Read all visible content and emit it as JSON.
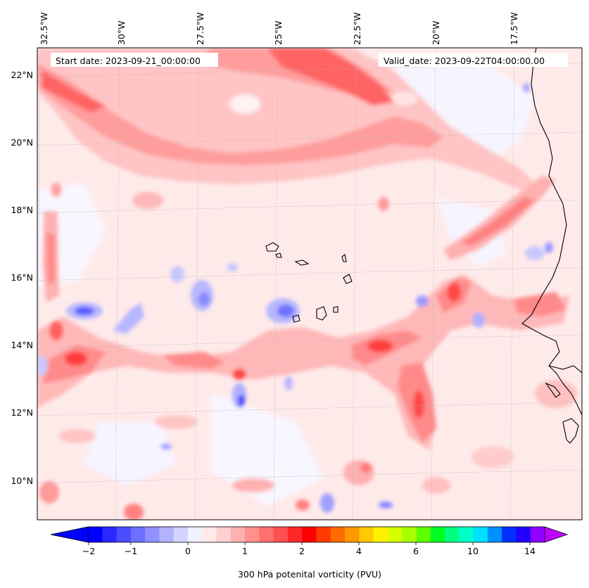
{
  "header": {
    "start_date": "Start date: 2023-09-21_00:00:00",
    "valid_date": "Valid_date: 2023-09-22T04:00:00.00"
  },
  "map": {
    "lon_labels": [
      "32.5°W",
      "30°W",
      "27.5°W",
      "25°W",
      "22.5°W",
      "20°W",
      "17.5°W"
    ],
    "lat_labels": [
      "22°N",
      "20°N",
      "18°N",
      "16°N",
      "14°N",
      "12°N",
      "10°N"
    ],
    "field": "300 hPa potential vorticity",
    "colors": {
      "strong_pos": "#ff5a5a",
      "pos": "#ff9a9a",
      "weak_pos": "#ffd0d0",
      "faint_pos": "#ffe8e8",
      "neg": "#c8c8ff",
      "strong_neg": "#6464ff",
      "coast": "#000000",
      "grid": "#bbbbbb"
    }
  },
  "colorbar": {
    "title": "300 hPa potenital vorticity (PVU)",
    "ticks": [
      "−2",
      "−1",
      "0",
      "1",
      "2",
      "4",
      "6",
      "10",
      "14"
    ],
    "colors": [
      "#0000ff",
      "#2828ff",
      "#4b4bff",
      "#6f6fff",
      "#9191ff",
      "#b2b2ff",
      "#d3d3ff",
      "#f0f0ff",
      "#ffe8e8",
      "#ffd0d0",
      "#ffb0b0",
      "#ff9090",
      "#ff7070",
      "#ff5050",
      "#ff2828",
      "#ff0000",
      "#ff3a00",
      "#ff6a00",
      "#ff9800",
      "#ffc800",
      "#fff000",
      "#d8ff00",
      "#a8ff00",
      "#60ff00",
      "#00ff20",
      "#00ff80",
      "#00ffc8",
      "#00e0ff",
      "#0090ff",
      "#0030ff",
      "#2000ff",
      "#9000ff"
    ],
    "under_color": "#0000ff",
    "over_color": "#c000ff"
  }
}
